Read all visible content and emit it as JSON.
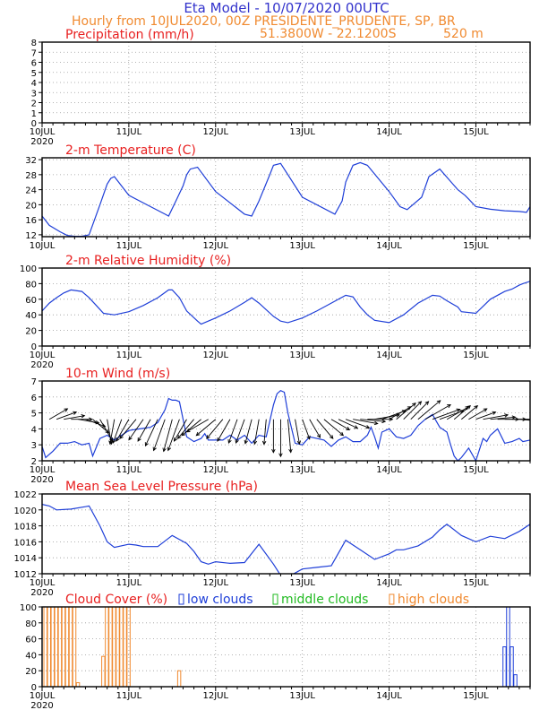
{
  "header": {
    "title": "Eta Model - 10/07/2020 00UTC",
    "subtitle": "Hourly from 10JUL2020, 00Z   PRESIDENTE_PRUDENTE, SP, BR",
    "coords": "51.3800W - 22.1200S",
    "elevation": "520  m"
  },
  "colors": {
    "title": "#3333cc",
    "header": "#f08a30",
    "panel_title": "#e82020",
    "line": "#1f3fd8",
    "wind_barb": "#000000",
    "cloud_high": "#f08a30",
    "cloud_low": "#1f3fd8",
    "cloud_mid": "#22bb22",
    "grid": "#9a9a9a"
  },
  "chart_data": [
    {
      "type": "line",
      "title": "Precipitation (mm/h)",
      "xlabel": "",
      "ylabel": "",
      "x_range": [
        0,
        135
      ],
      "x_ticks": [
        0,
        24,
        48,
        72,
        96,
        120
      ],
      "x_labels": [
        "10JUL",
        "11JUL",
        "12JUL",
        "13JUL",
        "14JUL",
        "15JUL"
      ],
      "year_label": "2020",
      "ylim": [
        0,
        8
      ],
      "y_ticks": [
        0,
        1,
        2,
        3,
        4,
        5,
        6,
        7,
        8
      ],
      "grid": true,
      "series": [
        {
          "name": "Precipitation",
          "x": [],
          "y": []
        }
      ]
    },
    {
      "type": "line",
      "title": "2-m Temperature (C)",
      "x_range": [
        0,
        135
      ],
      "x_ticks": [
        0,
        24,
        48,
        72,
        96,
        120
      ],
      "x_labels": [
        "10JUL",
        "11JUL",
        "12JUL",
        "13JUL",
        "14JUL",
        "15JUL"
      ],
      "year_label": "",
      "ylim": [
        11.5,
        32.5
      ],
      "y_ticks": [
        12,
        16,
        20,
        24,
        28,
        32
      ],
      "grid": true,
      "series": [
        {
          "name": "2-m Temperature",
          "x": [
            0,
            2,
            5,
            7,
            9,
            11,
            13,
            16,
            18,
            19,
            20,
            24,
            30,
            34,
            35,
            37,
            39,
            40,
            41,
            43,
            48,
            56,
            58,
            60,
            63,
            64,
            66,
            72,
            81,
            83,
            84,
            86,
            88,
            90,
            96,
            99,
            101,
            105,
            107,
            110,
            115,
            117,
            118,
            119,
            120,
            124,
            128,
            132,
            134,
            135
          ],
          "y": [
            17,
            14.5,
            12.8,
            11.8,
            11.6,
            11.6,
            12,
            20,
            25.5,
            27,
            27.5,
            22.5,
            19.5,
            17.5,
            17,
            21,
            25,
            28,
            29.5,
            30,
            23.5,
            17.5,
            17,
            21,
            28,
            30.5,
            31,
            22,
            17.5,
            21,
            26,
            30.5,
            31.2,
            30.5,
            23.5,
            19.5,
            18.7,
            22,
            27.5,
            29.5,
            24,
            22.5,
            21.5,
            20.5,
            19.5,
            18.8,
            18.4,
            18.2,
            18,
            19.5
          ]
        }
      ]
    },
    {
      "type": "line",
      "title": "2-m Relative Humidity (%)",
      "x_range": [
        0,
        135
      ],
      "x_ticks": [
        0,
        24,
        48,
        72,
        96,
        120
      ],
      "x_labels": [
        "10JUL",
        "11JUL",
        "12JUL",
        "13JUL",
        "14JUL",
        "15JUL"
      ],
      "year_label": "2020",
      "ylim": [
        0,
        100
      ],
      "y_ticks": [
        0,
        20,
        40,
        60,
        80,
        100
      ],
      "grid": true,
      "series": [
        {
          "name": "2-m Relative Humidity",
          "x": [
            0,
            2,
            4,
            6,
            8,
            11,
            13,
            15,
            17,
            20,
            21,
            24,
            28,
            32,
            35,
            36,
            38,
            40,
            43,
            44,
            48,
            52,
            56,
            58,
            60,
            64,
            66,
            68,
            72,
            76,
            80,
            84,
            86,
            88,
            90,
            92,
            96,
            100,
            104,
            108,
            110,
            112,
            115,
            116,
            120,
            124,
            128,
            130,
            132,
            133,
            135
          ],
          "y": [
            45,
            55,
            62,
            68,
            72,
            70,
            62,
            52,
            42,
            40,
            41,
            44,
            52,
            62,
            72,
            72,
            62,
            45,
            32,
            28,
            36,
            45,
            56,
            62,
            55,
            38,
            32,
            30,
            36,
            45,
            55,
            65,
            63,
            50,
            40,
            33,
            30,
            40,
            55,
            65,
            64,
            58,
            50,
            44,
            42,
            60,
            70,
            73,
            78,
            80,
            83
          ]
        }
      ]
    },
    {
      "type": "line",
      "title": "10-m Wind (m/s)",
      "x_range": [
        0,
        135
      ],
      "x_ticks": [
        0,
        24,
        48,
        72,
        96,
        120
      ],
      "x_labels": [
        "10JUL",
        "11JUL",
        "12JUL",
        "13JUL",
        "14JUL",
        "15JUL"
      ],
      "year_label": "2020",
      "ylim": [
        2,
        7
      ],
      "y_ticks": [
        2,
        3,
        4,
        5,
        6,
        7
      ],
      "grid": true,
      "barb_level": 4.6,
      "series": [
        {
          "name": "10-m Wind speed",
          "x": [
            0,
            1,
            3,
            5,
            7,
            9,
            11,
            13,
            14,
            16,
            18,
            20,
            22,
            24,
            27,
            30,
            32,
            34,
            35,
            36,
            37,
            38,
            40,
            42,
            44,
            45,
            46,
            48,
            50,
            52,
            54,
            56,
            58,
            60,
            62,
            64,
            65,
            66,
            67,
            68,
            70,
            72,
            74,
            76,
            78,
            80,
            82,
            84,
            86,
            88,
            90,
            91,
            92,
            93,
            94,
            96,
            98,
            100,
            102,
            104,
            106,
            108,
            110,
            112,
            113,
            114,
            115,
            116,
            118,
            120,
            122,
            123,
            124,
            126,
            128,
            130,
            132,
            133,
            135
          ],
          "y": [
            2.9,
            2.2,
            2.6,
            3.1,
            3.1,
            3.2,
            3.0,
            3.1,
            2.3,
            3.4,
            3.6,
            3.3,
            3.6,
            3.9,
            4.0,
            4.1,
            4.4,
            5.2,
            5.9,
            5.8,
            5.8,
            5.7,
            3.5,
            3.2,
            3.4,
            3.7,
            3.3,
            3.3,
            3.3,
            3.6,
            3.3,
            3.6,
            3.1,
            3.6,
            3.5,
            5.5,
            6.2,
            6.4,
            6.3,
            5.0,
            3.1,
            3.0,
            3.5,
            3.4,
            3.3,
            2.9,
            3.3,
            3.5,
            3.2,
            3.2,
            3.6,
            4.1,
            3.5,
            2.8,
            3.8,
            4.0,
            3.5,
            3.4,
            3.6,
            4.2,
            4.6,
            4.9,
            4.1,
            3.8,
            3.0,
            2.3,
            2.0,
            2.2,
            2.8,
            2.0,
            3.4,
            3.2,
            3.6,
            4.0,
            3.1,
            3.2,
            3.4,
            3.2,
            3.3
          ]
        }
      ],
      "wind_barbs": {
        "t": [
          2,
          4,
          6,
          8,
          10,
          12,
          14,
          16,
          18,
          20,
          22,
          24,
          26,
          28,
          30,
          32,
          34,
          36,
          38,
          40,
          42,
          44,
          46,
          48,
          50,
          52,
          54,
          56,
          58,
          60,
          62,
          64,
          66,
          68,
          70,
          72,
          74,
          76,
          78,
          80,
          82,
          84,
          86,
          88,
          90,
          92,
          94,
          96,
          98,
          100,
          102,
          104,
          106,
          108,
          110,
          112,
          114,
          116,
          118,
          120,
          122,
          124,
          126,
          128,
          130,
          132,
          134
        ],
        "dir": [
          60,
          70,
          80,
          90,
          100,
          110,
          130,
          150,
          170,
          190,
          200,
          210,
          220,
          215,
          210,
          205,
          200,
          195,
          200,
          210,
          220,
          230,
          240,
          230,
          220,
          210,
          200,
          200,
          195,
          190,
          185,
          180,
          180,
          175,
          170,
          160,
          150,
          140,
          130,
          120,
          115,
          110,
          100,
          95,
          90,
          80,
          70,
          60,
          50,
          45,
          45,
          50,
          60,
          70,
          70,
          60,
          50,
          50,
          60,
          70,
          80,
          85,
          90,
          90,
          90,
          95,
          95
        ],
        "speed": [
          3,
          3,
          3,
          3,
          3,
          3,
          3,
          4,
          4,
          4,
          4,
          4,
          4,
          4,
          4,
          5,
          6,
          6,
          6,
          4,
          4,
          4,
          4,
          4,
          4,
          4,
          4,
          4,
          4,
          4,
          4,
          6,
          7,
          6,
          4,
          3,
          3,
          4,
          4,
          3,
          3,
          4,
          4,
          4,
          4,
          4,
          4,
          4,
          4,
          4,
          4,
          5,
          5,
          5,
          4,
          4,
          3,
          3,
          3,
          3,
          4,
          4,
          3,
          3,
          3,
          3,
          3
        ]
      }
    },
    {
      "type": "line",
      "title": "Mean Sea Level Pressure (hPa)",
      "x_range": [
        0,
        135
      ],
      "x_ticks": [
        0,
        24,
        48,
        72,
        96,
        120
      ],
      "x_labels": [
        "10JUL",
        "11JUL",
        "12JUL",
        "13JUL",
        "14JUL",
        "15JUL"
      ],
      "year_label": "2020",
      "ylim": [
        1012,
        1022
      ],
      "y_ticks": [
        1012,
        1014,
        1016,
        1018,
        1020,
        1022
      ],
      "grid": true,
      "series": [
        {
          "name": "MSLP",
          "x": [
            0,
            2,
            4,
            8,
            12,
            13,
            16,
            18,
            20,
            24,
            26,
            28,
            32,
            36,
            40,
            42,
            44,
            46,
            48,
            52,
            56,
            60,
            64,
            66,
            68,
            72,
            76,
            80,
            84,
            88,
            92,
            96,
            98,
            100,
            104,
            108,
            110,
            112,
            114,
            116,
            120,
            124,
            128,
            132,
            135
          ],
          "y": [
            1020.7,
            1020.5,
            1020,
            1020.1,
            1020.4,
            1020.5,
            1018,
            1016,
            1015.3,
            1015.7,
            1015.6,
            1015.4,
            1015.4,
            1016.8,
            1015.8,
            1014.8,
            1013.5,
            1013.2,
            1013.5,
            1013.3,
            1013.4,
            1015.7,
            1013.2,
            1011.8,
            1011.6,
            1012.6,
            1012.8,
            1013,
            1016.2,
            1015,
            1013.8,
            1014.5,
            1015,
            1015,
            1015.5,
            1016.6,
            1017.5,
            1018.2,
            1017.5,
            1016.8,
            1016,
            1016.7,
            1016.4,
            1017.3,
            1018.2
          ]
        }
      ]
    },
    {
      "type": "bar",
      "title": "Cloud Cover (%)",
      "legend": [
        {
          "label": "low clouds",
          "color_key": "cloud_low"
        },
        {
          "label": "middle clouds",
          "color_key": "cloud_mid"
        },
        {
          "label": "high clouds",
          "color_key": "cloud_high"
        }
      ],
      "x_range": [
        0,
        135
      ],
      "x_ticks": [
        0,
        24,
        48,
        72,
        96,
        120
      ],
      "x_labels": [
        "10JUL",
        "11JUL",
        "12JUL",
        "13JUL",
        "14JUL",
        "15JUL"
      ],
      "year_label": "2020",
      "ylim": [
        0,
        100
      ],
      "y_ticks": [
        0,
        20,
        40,
        60,
        80,
        100
      ],
      "grid": true,
      "series": [
        {
          "name": "high clouds",
          "color_key": "cloud_high",
          "x": [
            1,
            2,
            3,
            4,
            5,
            6,
            7,
            8,
            9,
            10,
            17,
            18,
            19,
            20,
            21,
            22,
            23,
            24,
            38
          ],
          "y": [
            100,
            100,
            100,
            100,
            100,
            100,
            100,
            100,
            100,
            5,
            38,
            100,
            100,
            100,
            100,
            100,
            100,
            100,
            20
          ]
        },
        {
          "name": "low clouds",
          "color_key": "cloud_low",
          "x": [
            128,
            129,
            130,
            131
          ],
          "y": [
            50,
            100,
            50,
            15
          ]
        }
      ]
    }
  ]
}
